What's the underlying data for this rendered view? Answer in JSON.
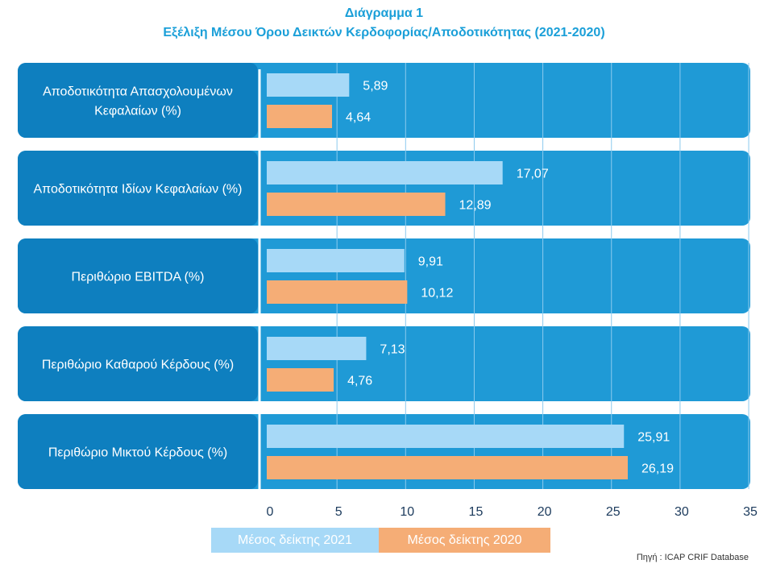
{
  "title": "Διάγραμμα 1",
  "subtitle": "Εξέλιξη Μέσου Όρου Δεικτών Κερδοφορίας/Αποδοτικότητας (2021-2020)",
  "source": "Πηγή : ICAP CRIF Database",
  "colors": {
    "band": "#1f9ad6",
    "band_dark": "#0e7fbf",
    "bar_2021": "#a7d9f7",
    "bar_2020": "#f5ad76",
    "grid": "#8ccaee",
    "axis_text": "#1b3a5c",
    "title": "#1a9fd8"
  },
  "chart_data": {
    "type": "bar",
    "orientation": "horizontal",
    "categories": [
      [
        "Αποδοτικότητα Απασχολουμένων",
        "Κεφαλαίων (%)"
      ],
      [
        "Αποδοτικότητα Ιδίων Κεφαλαίων (%)"
      ],
      [
        "Περιθώριο EBITDA (%)"
      ],
      [
        "Περιθώριο Καθαρού Κέρδους (%)"
      ],
      [
        "Περιθώριο Μικτού Κέρδους (%)"
      ]
    ],
    "series": [
      {
        "name": "Μέσος δείκτης 2021",
        "values": [
          5.89,
          17.07,
          9.91,
          7.13,
          25.91
        ],
        "labels": [
          "5,89",
          "17,07",
          "9,91",
          "7,13",
          "25,91"
        ]
      },
      {
        "name": "Μέσος δείκτης 2020",
        "values": [
          4.64,
          12.89,
          10.12,
          4.76,
          26.19
        ],
        "labels": [
          "4,64",
          "12,89",
          "10,12",
          "4,76",
          "26,19"
        ]
      }
    ],
    "xlim": [
      0,
      35
    ],
    "xticks": [
      "0",
      "5",
      "10",
      "15",
      "20",
      "25",
      "30",
      "35"
    ],
    "grid": true,
    "legend": "bottom"
  }
}
